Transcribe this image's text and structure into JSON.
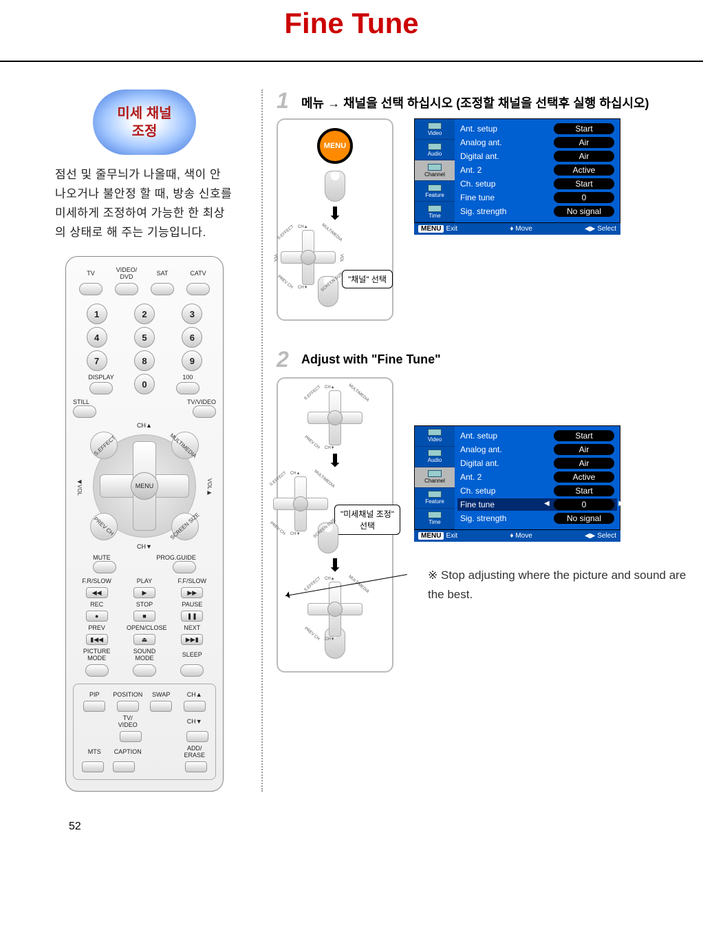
{
  "page": {
    "title": "Fine Tune",
    "number": "52"
  },
  "pill": {
    "line1": "미세 채널",
    "line2": "조정"
  },
  "intro": "점선 및 줄무늬가 나올때, 색이 안 나오거나 불안정 할 때, 방송 신호를 미세하게 조정하여 가능한 한 최상의 상태로 해 주는 기능입니다.",
  "remote": {
    "top_labels": [
      "TV",
      "VIDEO/\nDVD",
      "SAT",
      "CATV"
    ],
    "numpad": [
      [
        "1",
        "2",
        "3"
      ],
      [
        "4",
        "5",
        "6"
      ],
      [
        "7",
        "8",
        "9"
      ]
    ],
    "display_label": "DISPLAY",
    "zero": "0",
    "hundred": "100",
    "still": "STILL",
    "tvvideo": "TV/VIDEO",
    "nav": {
      "up": "CH▲",
      "down": "CH▼",
      "left": "◀VOL",
      "right": "VOL▶",
      "center": "MENU",
      "tl": "S.EFFECT",
      "tr": "MULTIMEDIA",
      "bl": "PREV CH",
      "br": "SCREEN SIZE"
    },
    "mute": "MUTE",
    "prog": "PROG.GUIDE",
    "row_play": [
      "F.R/SLOW",
      "PLAY",
      "F.F/SLOW"
    ],
    "row_play_sym": [
      "◀◀",
      "▶",
      "▶▶"
    ],
    "row_rec": [
      "REC",
      "STOP",
      "PAUSE"
    ],
    "row_rec_sym": [
      "●",
      "■",
      "❚❚"
    ],
    "row_prev": [
      "PREV",
      "OPEN/CLOSE",
      "NEXT"
    ],
    "row_prev_sym": [
      "▮◀◀",
      "⏏",
      "▶▶▮"
    ],
    "row_mode": [
      "PICTURE\nMODE",
      "SOUND\nMODE",
      "SLEEP"
    ],
    "bottom_row1": [
      "PIP",
      "POSITION",
      "SWAP",
      "CH▲"
    ],
    "bottom_row2_center": "TV/\nVIDEO",
    "bottom_row2_right": "CH▼",
    "bottom_row3": [
      "MTS",
      "CAPTION",
      "",
      "ADD/\nERASE"
    ]
  },
  "step1": {
    "num": "1",
    "text": "메뉴 → 채널을 선택 하십시오 (조정할 채널을 선택후 실행 하십시오)",
    "menu_label": "MENU",
    "speech": "\"채널\" 선택"
  },
  "step2": {
    "num": "2",
    "text": "Adjust with \"Fine Tune\"",
    "speech": "\"미세채널 조정\"\n선택"
  },
  "osd_tabs": [
    "Video",
    "Audio",
    "Channel",
    "Feature",
    "Time"
  ],
  "osd1": {
    "rows": [
      {
        "label": "Ant. setup",
        "val": "Start"
      },
      {
        "label": "Analog ant.",
        "val": "Air"
      },
      {
        "label": "Digital ant.",
        "val": "Air"
      },
      {
        "label": "Ant. 2",
        "val": "Active"
      },
      {
        "label": "Ch. setup",
        "val": "Start"
      },
      {
        "label": "Fine tune",
        "val": "0"
      },
      {
        "label": "Sig. strength",
        "val": "No signal"
      }
    ],
    "foot": {
      "menu": "MENU",
      "exit": "Exit",
      "move": "Move",
      "select": "Select"
    }
  },
  "osd2": {
    "rows": [
      {
        "label": "Ant. setup",
        "val": "Start"
      },
      {
        "label": "Analog ant.",
        "val": "Air"
      },
      {
        "label": "Digital ant.",
        "val": "Air"
      },
      {
        "label": "Ant. 2",
        "val": "Active"
      },
      {
        "label": "Ch. setup",
        "val": "Start"
      },
      {
        "label": "Fine tune",
        "val": "0",
        "hl": true,
        "arrows": true
      },
      {
        "label": "Sig. strength",
        "val": "No signal"
      }
    ],
    "foot": {
      "menu": "MENU",
      "exit": "Exit",
      "move": "Move",
      "select": "Select"
    }
  },
  "note_symbol": "※",
  "note_text": "Stop adjusting where the picture and sound are the best.",
  "colors": {
    "title": "#cc0000",
    "osd_bg": "#005fd1",
    "osd_left": "#0050b0",
    "menu_dot": "#ff8a00"
  }
}
